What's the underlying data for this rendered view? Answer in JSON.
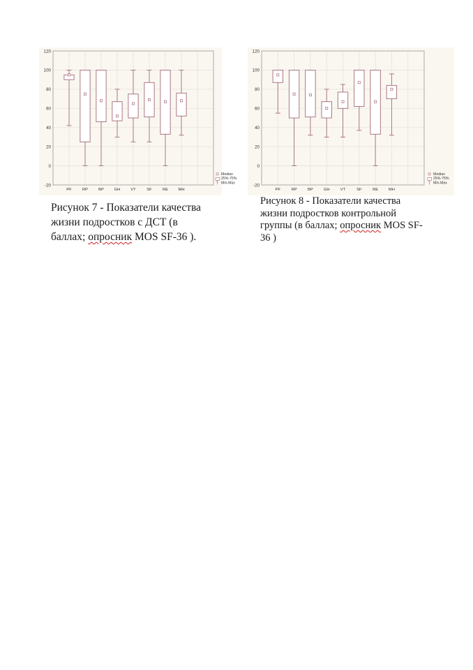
{
  "chart_data": [
    {
      "type": "boxplot",
      "categories": [
        "PF",
        "RP",
        "BP",
        "GH",
        "VT",
        "SF",
        "RE",
        "MH"
      ],
      "yticks": [
        -20,
        0,
        20,
        40,
        60,
        80,
        100,
        120
      ],
      "ylim": [
        -20,
        120
      ],
      "grid": true,
      "legend_placement": "bottom-right",
      "legend": [
        "Median",
        "25%-75%",
        "Min-Max"
      ],
      "series": [
        {
          "min": [
            42,
            0,
            0,
            30,
            25,
            25,
            0,
            32
          ],
          "q1": [
            90,
            25,
            46,
            47,
            50,
            51,
            33,
            52
          ],
          "median": [
            95,
            75,
            68,
            52,
            65,
            69,
            67,
            68
          ],
          "q3": [
            95,
            100,
            100,
            67,
            75,
            87,
            100,
            76
          ],
          "max": [
            100,
            100,
            100,
            80,
            100,
            100,
            100,
            100
          ]
        }
      ],
      "caption": {
        "line1": "Рисунок 7 - Показатели качества",
        "line2": "жизни подростков с ДСТ (в",
        "line3_pre": "баллах; ",
        "line3_spell": "опросник",
        "line3_post": " MOS SF-36 )."
      }
    },
    {
      "type": "boxplot",
      "categories": [
        "PF",
        "RP",
        "BP",
        "GH",
        "VT",
        "SF",
        "RE",
        "MH"
      ],
      "yticks": [
        -20,
        0,
        20,
        40,
        60,
        80,
        100,
        120
      ],
      "ylim": [
        -20,
        120
      ],
      "grid": true,
      "legend_placement": "bottom-right",
      "legend": [
        "Median",
        "25%-75%",
        "Min-Max"
      ],
      "series": [
        {
          "min": [
            55,
            0,
            32,
            30,
            30,
            37,
            0,
            32
          ],
          "q1": [
            87,
            50,
            51,
            50,
            60,
            62,
            33,
            70
          ],
          "median": [
            95,
            75,
            74,
            60,
            67,
            87,
            67,
            80
          ],
          "q3": [
            100,
            100,
            100,
            67,
            77,
            100,
            100,
            84
          ],
          "max": [
            100,
            100,
            100,
            80,
            85,
            100,
            100,
            96
          ]
        }
      ],
      "caption": {
        "line1": "Рисунок 8 - Показатели качества",
        "line2": "жизни подростков контрольной",
        "line3_pre": "группы (в баллах; ",
        "line3_spell": "опросник",
        "line3_post": " MOS SF-",
        "line4": "36 )"
      }
    }
  ],
  "colors": {
    "background": "#faf7f1",
    "box": "#a26a78",
    "grid": "#e6e2dc",
    "axis_text": "#333333"
  }
}
